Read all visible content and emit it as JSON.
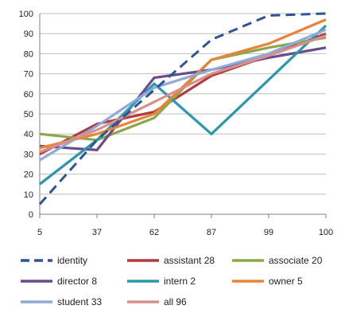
{
  "chart_data": {
    "type": "line",
    "title": "",
    "xlabel": "",
    "ylabel": "",
    "categories": [
      "5",
      "37",
      "62",
      "87",
      "99",
      "100"
    ],
    "ylim": [
      0,
      100
    ],
    "yticks": [
      0,
      10,
      20,
      30,
      40,
      50,
      60,
      70,
      80,
      90,
      100
    ],
    "grid": "horizontal",
    "legend_position": "bottom",
    "series": [
      {
        "name": "identity",
        "color": "#2e5496",
        "dash": true,
        "values": [
          5,
          37,
          62,
          87,
          99,
          100
        ]
      },
      {
        "name": "assistant 28",
        "color": "#b23b3b",
        "dash": false,
        "values": [
          30,
          45,
          51,
          69,
          79,
          90
        ]
      },
      {
        "name": "associate 20",
        "color": "#8aa84a",
        "dash": false,
        "values": [
          40,
          37,
          48,
          77,
          83,
          88
        ]
      },
      {
        "name": "director 8",
        "color": "#6a4a8e",
        "dash": false,
        "values": [
          34,
          32,
          68,
          72,
          78,
          83
        ]
      },
      {
        "name": "intern 2",
        "color": "#2b97ae",
        "dash": false,
        "values": [
          15,
          37,
          65,
          40,
          67,
          94
        ]
      },
      {
        "name": "owner 5",
        "color": "#e8833a",
        "dash": false,
        "values": [
          33,
          40,
          50,
          77,
          85,
          97
        ]
      },
      {
        "name": "student 33",
        "color": "#8eaad8",
        "dash": false,
        "values": [
          27,
          44,
          63,
          72,
          80,
          92
        ]
      },
      {
        "name": "all 96",
        "color": "#d9908c",
        "dash": false,
        "values": [
          31,
          42,
          56,
          70,
          79,
          89
        ]
      }
    ]
  }
}
